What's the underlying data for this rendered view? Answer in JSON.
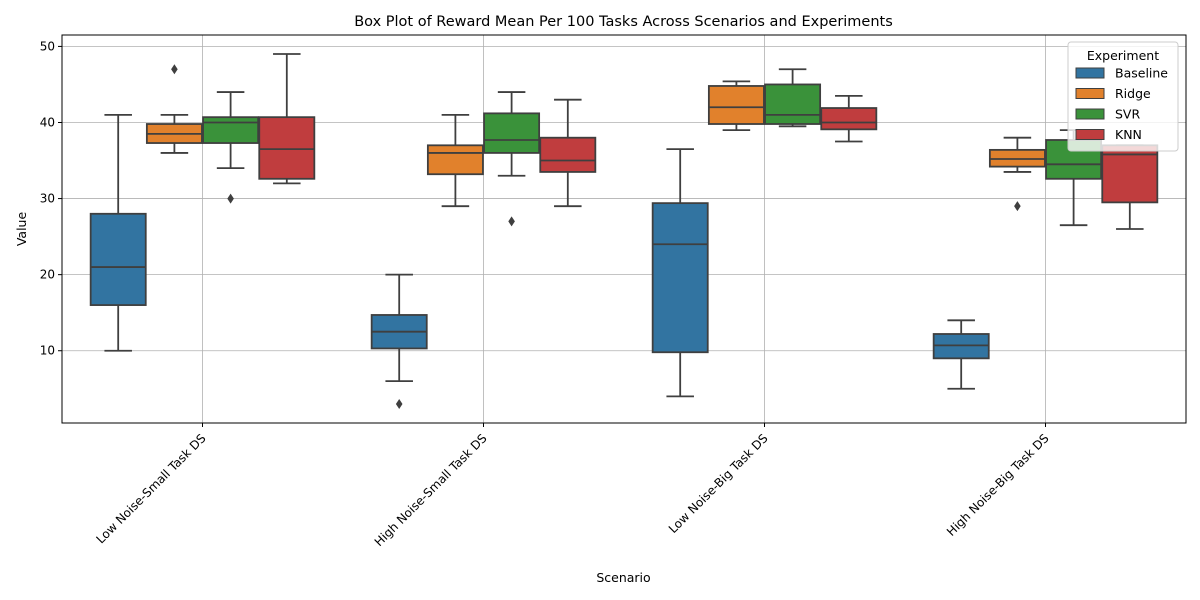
{
  "chart_data": {
    "type": "box",
    "title": "Box Plot of Reward Mean Per 100 Tasks Across Scenarios and Experiments",
    "xlabel": "Scenario",
    "ylabel": "Value",
    "ylim": [
      0.5,
      51.5
    ],
    "yticks": [
      10,
      20,
      30,
      40,
      50
    ],
    "grid": true,
    "categories": [
      "Low Noise-Small Task DS",
      "High Noise-Small Task DS",
      "Low Noise-Big Task DS",
      "High Noise-Big Task DS"
    ],
    "legend": {
      "title": "Experiment",
      "position": "top-right"
    },
    "series": [
      {
        "name": "Baseline",
        "color": "#3274a1",
        "boxes": [
          {
            "whisker_low": 10,
            "q1": 16,
            "median": 21,
            "q3": 28,
            "whisker_high": 41,
            "outliers": []
          },
          {
            "whisker_low": 6,
            "q1": 10.3,
            "median": 12.5,
            "q3": 14.7,
            "whisker_high": 20,
            "outliers": [
              3
            ]
          },
          {
            "whisker_low": 4,
            "q1": 9.8,
            "median": 24,
            "q3": 29.4,
            "whisker_high": 36.5,
            "outliers": []
          },
          {
            "whisker_low": 5,
            "q1": 9,
            "median": 10.7,
            "q3": 12.2,
            "whisker_high": 14,
            "outliers": []
          }
        ]
      },
      {
        "name": "Ridge",
        "color": "#e1812c",
        "boxes": [
          {
            "whisker_low": 36,
            "q1": 37.3,
            "median": 38.5,
            "q3": 39.8,
            "whisker_high": 41,
            "outliers": [
              47
            ]
          },
          {
            "whisker_low": 29,
            "q1": 33.2,
            "median": 36,
            "q3": 37,
            "whisker_high": 41,
            "outliers": []
          },
          {
            "whisker_low": 39,
            "q1": 39.8,
            "median": 42,
            "q3": 44.8,
            "whisker_high": 45.4,
            "outliers": []
          },
          {
            "whisker_low": 33.5,
            "q1": 34.2,
            "median": 35.2,
            "q3": 36.4,
            "whisker_high": 38,
            "outliers": [
              29
            ]
          }
        ]
      },
      {
        "name": "SVR",
        "color": "#3a923a",
        "boxes": [
          {
            "whisker_low": 34,
            "q1": 37.3,
            "median": 40,
            "q3": 40.7,
            "whisker_high": 44,
            "outliers": [
              30
            ]
          },
          {
            "whisker_low": 33,
            "q1": 36,
            "median": 37.7,
            "q3": 41.2,
            "whisker_high": 44,
            "outliers": [
              27
            ]
          },
          {
            "whisker_low": 39.5,
            "q1": 39.8,
            "median": 41,
            "q3": 45,
            "whisker_high": 47,
            "outliers": []
          },
          {
            "whisker_low": 26.5,
            "q1": 32.6,
            "median": 34.5,
            "q3": 37.7,
            "whisker_high": 39,
            "outliers": []
          }
        ]
      },
      {
        "name": "KNN",
        "color": "#c03d3e",
        "boxes": [
          {
            "whisker_low": 32,
            "q1": 32.6,
            "median": 36.5,
            "q3": 40.7,
            "whisker_high": 49,
            "outliers": []
          },
          {
            "whisker_low": 29,
            "q1": 33.5,
            "median": 35,
            "q3": 38,
            "whisker_high": 43,
            "outliers": []
          },
          {
            "whisker_low": 37.5,
            "q1": 39.1,
            "median": 40,
            "q3": 41.9,
            "whisker_high": 43.5,
            "outliers": []
          },
          {
            "whisker_low": 26,
            "q1": 29.5,
            "median": 35.8,
            "q3": 37,
            "whisker_high": 37,
            "outliers": []
          }
        ]
      }
    ]
  }
}
